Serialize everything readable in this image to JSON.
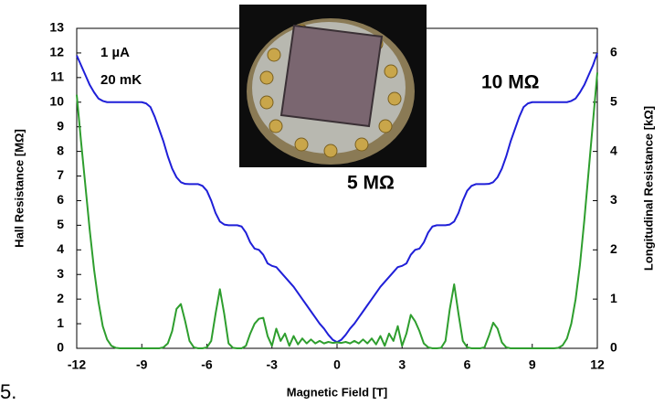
{
  "chart_data": {
    "type": "line",
    "xlabel": "Magnetic Field [T]",
    "ylabel": "Hall Resistance [MΩ]",
    "y2label": "Longitudinal Resistance [kΩ]",
    "annotations": [
      "1 µA",
      "20 mK",
      "10 MΩ",
      "5 MΩ"
    ],
    "panel_label": "5.",
    "xlim": [
      -12,
      12
    ],
    "xticks": [
      -12,
      -9,
      -6,
      -3,
      0,
      3,
      6,
      9,
      12
    ],
    "ylim": [
      0,
      13
    ],
    "yticks": [
      0,
      1,
      2,
      3,
      4,
      5,
      6,
      7,
      8,
      9,
      10,
      11,
      12,
      13
    ],
    "y2lim": [
      0,
      6.5
    ],
    "y2ticks": [
      0,
      1,
      2,
      3,
      4,
      5,
      6
    ],
    "grid": false,
    "x": [
      -12.0,
      -11.8,
      -11.6,
      -11.4,
      -11.2,
      -11.0,
      -10.8,
      -10.6,
      -10.4,
      -10.2,
      -10.0,
      -9.8,
      -9.6,
      -9.4,
      -9.2,
      -9.0,
      -8.8,
      -8.6,
      -8.4,
      -8.2,
      -8.0,
      -7.8,
      -7.6,
      -7.4,
      -7.2,
      -7.0,
      -6.8,
      -6.6,
      -6.4,
      -6.2,
      -6.0,
      -5.8,
      -5.6,
      -5.4,
      -5.2,
      -5.0,
      -4.8,
      -4.6,
      -4.4,
      -4.2,
      -4.0,
      -3.8,
      -3.6,
      -3.4,
      -3.2,
      -3.0,
      -2.8,
      -2.6,
      -2.4,
      -2.2,
      -2.0,
      -1.8,
      -1.6,
      -1.4,
      -1.2,
      -1.0,
      -0.8,
      -0.6,
      -0.4,
      -0.2,
      0.0,
      0.2,
      0.4,
      0.6,
      0.8,
      1.0,
      1.2,
      1.4,
      1.6,
      1.8,
      2.0,
      2.2,
      2.4,
      2.6,
      2.8,
      3.0,
      3.2,
      3.4,
      3.6,
      3.8,
      4.0,
      4.2,
      4.4,
      4.6,
      4.8,
      5.0,
      5.2,
      5.4,
      5.6,
      5.8,
      6.0,
      6.2,
      6.4,
      6.6,
      6.8,
      7.0,
      7.2,
      7.4,
      7.6,
      7.8,
      8.0,
      8.2,
      8.4,
      8.6,
      8.8,
      9.0,
      9.2,
      9.4,
      9.6,
      9.8,
      10.0,
      10.2,
      10.4,
      10.6,
      10.8,
      11.0,
      11.2,
      11.4,
      11.6,
      11.8,
      12.0
    ],
    "series": [
      {
        "color": "#1f1fd8",
        "axis": "y",
        "values": [
          11.9,
          11.5,
          11.1,
          10.7,
          10.4,
          10.15,
          10.05,
          10.0,
          10.0,
          10.0,
          10.0,
          10.0,
          10.0,
          10.0,
          10.0,
          10.0,
          9.95,
          9.8,
          9.4,
          8.9,
          8.4,
          7.8,
          7.3,
          6.95,
          6.75,
          6.68,
          6.67,
          6.67,
          6.67,
          6.6,
          6.4,
          6.0,
          5.5,
          5.15,
          5.03,
          5.0,
          5.0,
          5.0,
          4.95,
          4.7,
          4.3,
          4.05,
          4.0,
          3.8,
          3.45,
          3.35,
          3.3,
          3.1,
          2.9,
          2.7,
          2.5,
          2.25,
          2.0,
          1.75,
          1.5,
          1.25,
          1.0,
          0.8,
          0.55,
          0.35,
          0.25,
          0.35,
          0.55,
          0.8,
          1.0,
          1.25,
          1.5,
          1.75,
          2.0,
          2.25,
          2.5,
          2.7,
          2.9,
          3.1,
          3.3,
          3.35,
          3.45,
          3.8,
          4.0,
          4.05,
          4.3,
          4.7,
          4.95,
          5.0,
          5.0,
          5.0,
          5.03,
          5.15,
          5.5,
          6.0,
          6.4,
          6.6,
          6.67,
          6.67,
          6.67,
          6.68,
          6.75,
          6.95,
          7.3,
          7.8,
          8.4,
          8.9,
          9.4,
          9.8,
          9.95,
          10.0,
          10.0,
          10.0,
          10.0,
          10.0,
          10.0,
          10.0,
          10.0,
          10.0,
          10.05,
          10.15,
          10.4,
          10.7,
          11.1,
          11.5,
          12.0
        ]
      },
      {
        "color": "#2e9e2e",
        "axis": "y2",
        "values": [
          5.15,
          4.2,
          3.3,
          2.4,
          1.6,
          0.95,
          0.45,
          0.18,
          0.05,
          0.01,
          0,
          0,
          0,
          0,
          0,
          0,
          0,
          0,
          0,
          0,
          0.02,
          0.1,
          0.35,
          0.8,
          0.9,
          0.55,
          0.15,
          0.02,
          0,
          0,
          0.02,
          0.15,
          0.7,
          1.2,
          0.7,
          0.1,
          0.01,
          0,
          0,
          0.05,
          0.3,
          0.5,
          0.6,
          0.62,
          0.25,
          0.05,
          0.4,
          0.15,
          0.3,
          0.05,
          0.25,
          0.08,
          0.2,
          0.1,
          0.18,
          0.1,
          0.15,
          0.1,
          0.13,
          0.11,
          0.12,
          0.11,
          0.13,
          0.1,
          0.15,
          0.1,
          0.18,
          0.1,
          0.2,
          0.08,
          0.25,
          0.05,
          0.3,
          0.15,
          0.45,
          0.05,
          0.3,
          0.68,
          0.55,
          0.35,
          0.1,
          0.02,
          0,
          0,
          0.01,
          0.15,
          0.8,
          1.3,
          0.7,
          0.15,
          0.02,
          0,
          0,
          0,
          0.02,
          0.25,
          0.52,
          0.4,
          0.12,
          0.02,
          0,
          0,
          0,
          0,
          0,
          0,
          0,
          0,
          0,
          0,
          0,
          0.01,
          0.06,
          0.2,
          0.5,
          1.0,
          1.7,
          2.6,
          3.6,
          4.6,
          5.6
        ]
      }
    ]
  }
}
